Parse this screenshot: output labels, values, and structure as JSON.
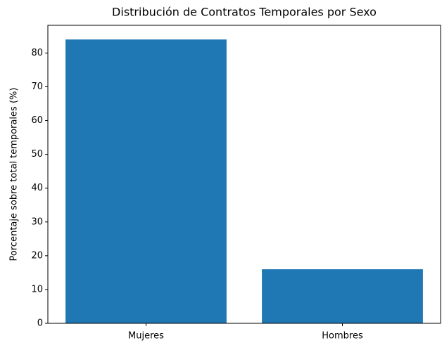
{
  "chart_data": {
    "type": "bar",
    "title": "Distribución de Contratos Temporales por Sexo",
    "ylabel": "Porcentaje sobre total temporales (%)",
    "categories": [
      "Mujeres",
      "Hombres"
    ],
    "values": [
      84,
      16
    ],
    "color": "#1f77b4",
    "ylim": [
      0,
      88.2
    ],
    "yticks": [
      0,
      10,
      20,
      30,
      40,
      50,
      60,
      70,
      80
    ],
    "grid": false
  }
}
